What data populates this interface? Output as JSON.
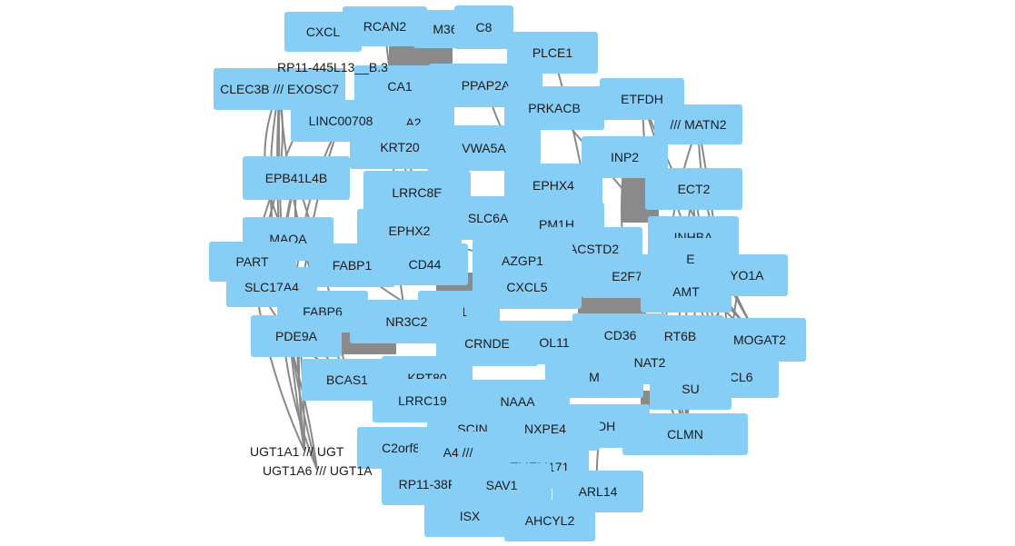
{
  "nodes": [
    {
      "id": "CXCL",
      "label": "CXCL"
    },
    {
      "id": "RCAN2",
      "label": "RCAN2"
    },
    {
      "id": "M36",
      "label": "M36"
    },
    {
      "id": "C8",
      "label": "C8"
    },
    {
      "id": "PLCE1",
      "label": "PLCE1"
    },
    {
      "id": "RP11-445L13__B.3",
      "label": "RP11-445L13__B.3"
    },
    {
      "id": "CLEC3B /// EXOSC7",
      "label": "CLEC3B /// EXOSC7"
    },
    {
      "id": "CA1",
      "label": "CA1"
    },
    {
      "id": "PPAP2A",
      "label": "PPAP2A"
    },
    {
      "id": "PRKACB",
      "label": "PRKACB"
    },
    {
      "id": "ETFDH",
      "label": "ETFDH"
    },
    {
      "id": "MATN2",
      "label": "/// MATN2"
    },
    {
      "id": "LINC00708",
      "label": "LINC00708"
    },
    {
      "id": "A2",
      "label": "A2"
    },
    {
      "id": "KRT20",
      "label": "KRT20"
    },
    {
      "id": "VWA5A",
      "label": "VWA5A"
    },
    {
      "id": "INP2",
      "label": "INP2"
    },
    {
      "id": "EPB41L4B",
      "label": "EPB41L4B"
    },
    {
      "id": "LRRC8E",
      "label": "LRRC8E"
    },
    {
      "id": "EPHX4",
      "label": "EPHX4"
    },
    {
      "id": "ECT2",
      "label": "ECT2"
    },
    {
      "id": "SLC6A6",
      "label": "SLC6A6"
    },
    {
      "id": "PM1H",
      "label": "PM1H"
    },
    {
      "id": "EPHX2",
      "label": "EPHX2"
    },
    {
      "id": "MAOA",
      "label": "MAOA"
    },
    {
      "id": "INHBA",
      "label": "INHBA"
    },
    {
      "id": "ACSTD2",
      "label": "ACSTD2"
    },
    {
      "id": "PART",
      "label": "PART"
    },
    {
      "id": "FABP1",
      "label": "FABP1"
    },
    {
      "id": "CD44",
      "label": "CD44"
    },
    {
      "id": "AZGP1",
      "label": "AZGP1"
    },
    {
      "id": "EC",
      "label": "EC"
    },
    {
      "id": "E2F7",
      "label": "E2F7"
    },
    {
      "id": "MYO1A",
      "label": "MYO1A"
    },
    {
      "id": "SLC17A4",
      "label": "SLC17A4"
    },
    {
      "id": "CXCL5",
      "label": "CXCL5"
    },
    {
      "id": "AMT",
      "label": "AMT"
    },
    {
      "id": "FABP6",
      "label": "FABP6"
    },
    {
      "id": "N1",
      "label": "N1"
    },
    {
      "id": "NR3C2",
      "label": "NR3C2"
    },
    {
      "id": "PDE9A",
      "label": "PDE9A"
    },
    {
      "id": "CRNDE",
      "label": "CRNDE"
    },
    {
      "id": "OL11",
      "label": "OL11"
    },
    {
      "id": "CD36",
      "label": "CD36"
    },
    {
      "id": "RT6B",
      "label": "RT6B"
    },
    {
      "id": "MOGAT2",
      "label": "MOGAT2"
    },
    {
      "id": "BCAS1",
      "label": "BCAS1"
    },
    {
      "id": "KRT80",
      "label": "KRT80"
    },
    {
      "id": "NAT2",
      "label": "NAT2"
    },
    {
      "id": "CXCL6",
      "label": "CXCL6"
    },
    {
      "id": "M",
      "label": "M"
    },
    {
      "id": "LRRC19",
      "label": "LRRC19"
    },
    {
      "id": "NAAA",
      "label": "NAAA"
    },
    {
      "id": "SU",
      "label": "SU"
    },
    {
      "id": "SCIN",
      "label": "SCIN"
    },
    {
      "id": "NXPE4",
      "label": "NXPE4"
    },
    {
      "id": "XDH",
      "label": "XDH"
    },
    {
      "id": "CLMN",
      "label": "CLMN"
    },
    {
      "id": "C2orf88",
      "label": "C2orf88"
    },
    {
      "id": "A4",
      "label": "A4 ///"
    },
    {
      "id": "TMEM171",
      "label": "TMEM171"
    },
    {
      "id": "RP11-38F",
      "label": "RP11-38F"
    },
    {
      "id": "SAV1",
      "label": "SAV1"
    },
    {
      "id": "ARL14",
      "label": "ARL14"
    },
    {
      "id": "ISX",
      "label": "ISX"
    },
    {
      "id": "AHCYL2",
      "label": "AHCYL2"
    },
    {
      "id": "UGT1A1",
      "label": "UGT1A1 /// UGT"
    },
    {
      "id": "UGT1A6",
      "label": "UGT1A6 /// UGT1A"
    }
  ],
  "edges": [
    [
      "CLEC3B /// EXOSC7",
      "MAOA"
    ],
    [
      "CLEC3B /// EXOSC7",
      "PDE9A"
    ],
    [
      "CLEC3B /// EXOSC7",
      "BCAS1"
    ],
    [
      "CLEC3B /// EXOSC7",
      "UGT1A1"
    ],
    [
      "EPB41L4B",
      "BCAS1"
    ],
    [
      "EPB41L4B",
      "UGT1A6"
    ],
    [
      "EPB41L4B",
      "PDE9A"
    ],
    [
      "PART",
      "UGT1A1"
    ],
    [
      "PART",
      "CLEC3B /// EXOSC7"
    ],
    [
      "SLC17A4",
      "UGT1A6"
    ],
    [
      "MAOA",
      "BCAS1"
    ],
    [
      "LINC00708",
      "PDE9A"
    ],
    [
      "CLEC3B /// EXOSC7",
      "UGT1A6"
    ],
    [
      "EPB41L4B",
      "UGT1A1"
    ],
    [
      "MAOA",
      "UGT1A1"
    ],
    [
      "PART",
      "BCAS1"
    ],
    [
      "LINC00708",
      "UGT1A1"
    ],
    [
      "RP11-445L13__B.3",
      "PART"
    ],
    [
      "ETFDH",
      "MOGAT2"
    ],
    [
      "ETFDH",
      "CXCL6"
    ],
    [
      "MATN2",
      "CLMN"
    ],
    [
      "MATN2",
      "MOGAT2"
    ],
    [
      "ECT2",
      "CLMN"
    ],
    [
      "ECT2",
      "CXCL6"
    ],
    [
      "INHBA",
      "CLMN"
    ],
    [
      "INHBA",
      "MOGAT2"
    ],
    [
      "MYO1A",
      "CLMN"
    ],
    [
      "EC",
      "CXCL6"
    ],
    [
      "ETFDH",
      "CLMN"
    ],
    [
      "MATN2",
      "CXCL6"
    ],
    [
      "ECT2",
      "MOGAT2"
    ],
    [
      "INHBA",
      "CXCL6"
    ],
    [
      "MYO1A",
      "CXCL6"
    ],
    [
      "AMT",
      "CLMN"
    ],
    [
      "PRKACB",
      "MOGAT2"
    ],
    [
      "INP2",
      "CLMN"
    ],
    [
      "RCAN2",
      "CRNDE"
    ],
    [
      "CA1",
      "NR3C2"
    ],
    [
      "KRT20",
      "CD44"
    ],
    [
      "PLCE1",
      "ACSTD2"
    ],
    [
      "PPAP2A",
      "E2F7"
    ],
    [
      "SLC6A6",
      "CXCL5"
    ],
    [
      "FABP1",
      "CRNDE"
    ],
    [
      "EPHX2",
      "AZGP1"
    ],
    [
      "KRT80",
      "NAAA"
    ],
    [
      "SCIN",
      "NXPE4"
    ],
    [
      "CD36",
      "NAT2"
    ],
    [
      "XDH",
      "ARL14"
    ],
    [
      "SAV1",
      "AHCYL2"
    ],
    [
      "C2orf88",
      "ISX"
    ],
    [
      "LRRC8E",
      "PM1H"
    ],
    [
      "VWA5A",
      "EPHX4"
    ],
    [
      "FABP6",
      "NR3C2"
    ],
    [
      "CD44",
      "CXCL5"
    ],
    [
      "AZGP1",
      "E2F7"
    ],
    [
      "OL11",
      "CD36"
    ],
    [
      "LRRC19",
      "SCIN"
    ],
    [
      "NAAA",
      "XDH"
    ],
    [
      "TMEM171",
      "SAV1"
    ],
    [
      "RP11-38F",
      "SAV1"
    ]
  ]
}
